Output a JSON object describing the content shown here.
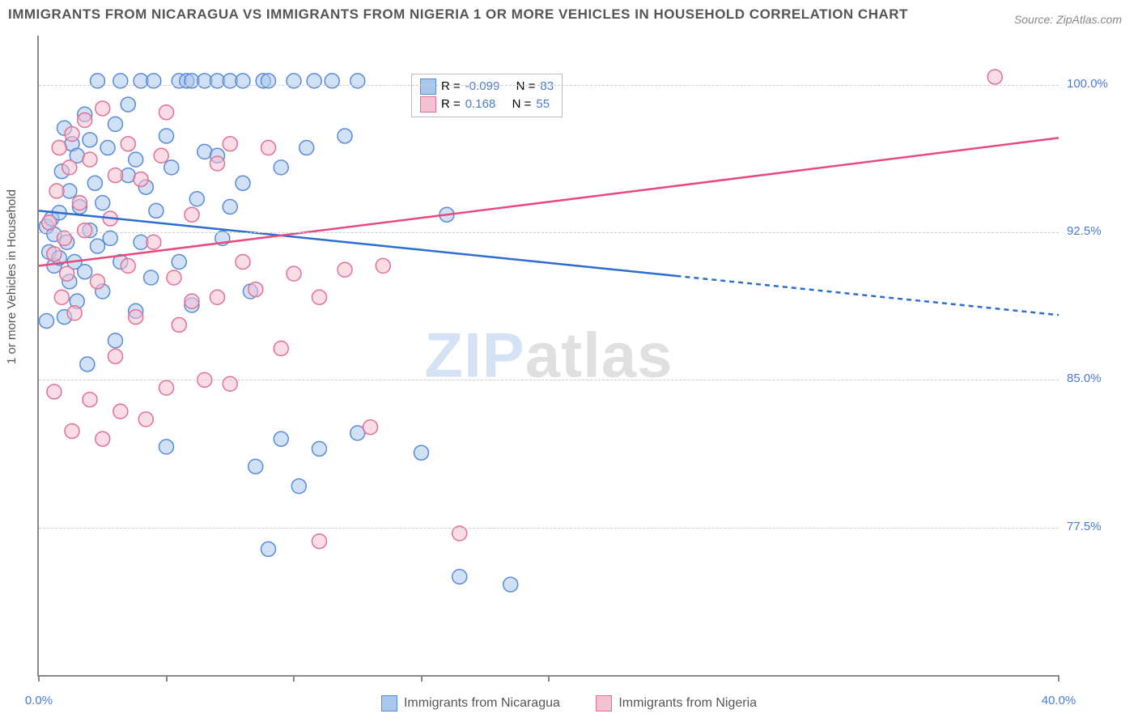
{
  "title": "IMMIGRANTS FROM NICARAGUA VS IMMIGRANTS FROM NIGERIA 1 OR MORE VEHICLES IN HOUSEHOLD CORRELATION CHART",
  "source": "Source: ZipAtlas.com",
  "y_axis_label": "1 or more Vehicles in Household",
  "watermark_a": "ZIP",
  "watermark_b": "atlas",
  "chart": {
    "type": "scatter",
    "xlim": [
      0,
      40
    ],
    "ylim": [
      70,
      102.5
    ],
    "x_ticks": [
      0,
      5,
      10,
      15,
      20,
      40
    ],
    "x_tick_labels": {
      "0": "0.0%",
      "40": "40.0%"
    },
    "y_ticks": [
      77.5,
      85.0,
      92.5,
      100.0
    ],
    "y_tick_labels": [
      "77.5%",
      "85.0%",
      "92.5%",
      "100.0%"
    ],
    "grid_color": "#cccccc",
    "background_color": "#ffffff",
    "marker_radius": 9,
    "marker_opacity": 0.55,
    "line_width": 2.5,
    "series": [
      {
        "name": "Immigrants from Nicaragua",
        "color_fill": "#a9c6ec",
        "color_stroke": "#5a8bd8",
        "line_color": "#2d6cd1",
        "r_value": "-0.099",
        "n_value": "83",
        "regression": {
          "x1": 0,
          "y1": 93.6,
          "x2": 40,
          "y2": 88.3,
          "solid_until_x": 25
        },
        "points": [
          [
            0.3,
            92.8
          ],
          [
            0.4,
            91.5
          ],
          [
            0.5,
            93.2
          ],
          [
            0.6,
            92.4
          ],
          [
            0.6,
            90.8
          ],
          [
            0.8,
            91.2
          ],
          [
            0.8,
            93.5
          ],
          [
            0.9,
            95.6
          ],
          [
            1.0,
            97.8
          ],
          [
            1.0,
            88.2
          ],
          [
            1.1,
            92.0
          ],
          [
            1.2,
            90.0
          ],
          [
            1.2,
            94.6
          ],
          [
            1.3,
            97.0
          ],
          [
            1.4,
            91.0
          ],
          [
            1.5,
            96.4
          ],
          [
            1.5,
            89.0
          ],
          [
            1.6,
            93.8
          ],
          [
            1.8,
            98.5
          ],
          [
            1.8,
            90.5
          ],
          [
            1.9,
            85.8
          ],
          [
            2.0,
            97.2
          ],
          [
            2.0,
            92.6
          ],
          [
            2.2,
            95.0
          ],
          [
            2.3,
            100.2
          ],
          [
            2.3,
            91.8
          ],
          [
            2.5,
            94.0
          ],
          [
            2.5,
            89.5
          ],
          [
            2.7,
            96.8
          ],
          [
            2.8,
            92.2
          ],
          [
            3.0,
            98.0
          ],
          [
            3.0,
            87.0
          ],
          [
            3.2,
            100.2
          ],
          [
            3.2,
            91.0
          ],
          [
            3.5,
            95.4
          ],
          [
            3.5,
            99.0
          ],
          [
            3.8,
            88.5
          ],
          [
            3.8,
            96.2
          ],
          [
            4.0,
            100.2
          ],
          [
            4.0,
            92.0
          ],
          [
            4.2,
            94.8
          ],
          [
            4.4,
            90.2
          ],
          [
            4.5,
            100.2
          ],
          [
            4.6,
            93.6
          ],
          [
            5.0,
            81.6
          ],
          [
            5.0,
            97.4
          ],
          [
            5.2,
            95.8
          ],
          [
            5.5,
            100.2
          ],
          [
            5.5,
            91.0
          ],
          [
            5.8,
            100.2
          ],
          [
            6.0,
            88.8
          ],
          [
            6.0,
            100.2
          ],
          [
            6.2,
            94.2
          ],
          [
            6.5,
            100.2
          ],
          [
            6.5,
            96.6
          ],
          [
            7.0,
            96.4
          ],
          [
            7.0,
            100.2
          ],
          [
            7.2,
            92.2
          ],
          [
            7.5,
            93.8
          ],
          [
            7.5,
            100.2
          ],
          [
            8.0,
            100.2
          ],
          [
            8.0,
            95.0
          ],
          [
            8.3,
            89.5
          ],
          [
            8.5,
            80.6
          ],
          [
            8.8,
            100.2
          ],
          [
            9.0,
            76.4
          ],
          [
            9.0,
            100.2
          ],
          [
            9.5,
            95.8
          ],
          [
            9.5,
            82.0
          ],
          [
            10.0,
            100.2
          ],
          [
            10.2,
            79.6
          ],
          [
            10.5,
            96.8
          ],
          [
            10.8,
            100.2
          ],
          [
            11.0,
            81.5
          ],
          [
            11.5,
            100.2
          ],
          [
            12.0,
            97.4
          ],
          [
            12.5,
            100.2
          ],
          [
            12.5,
            82.3
          ],
          [
            15.0,
            81.3
          ],
          [
            16.0,
            93.4
          ],
          [
            16.5,
            75.0
          ],
          [
            18.5,
            74.6
          ],
          [
            0.3,
            88.0
          ]
        ]
      },
      {
        "name": "Immigrants from Nigeria",
        "color_fill": "#f5c0cf",
        "color_stroke": "#e56f94",
        "line_color": "#e74a7a",
        "r_value": "0.168",
        "n_value": "55",
        "regression": {
          "x1": 0,
          "y1": 90.8,
          "x2": 40,
          "y2": 97.3,
          "solid_until_x": 40
        },
        "points": [
          [
            0.4,
            93.0
          ],
          [
            0.6,
            91.4
          ],
          [
            0.7,
            94.6
          ],
          [
            0.8,
            96.8
          ],
          [
            0.9,
            89.2
          ],
          [
            1.0,
            92.2
          ],
          [
            1.1,
            90.4
          ],
          [
            1.2,
            95.8
          ],
          [
            1.3,
            97.5
          ],
          [
            1.3,
            82.4
          ],
          [
            1.4,
            88.4
          ],
          [
            1.6,
            94.0
          ],
          [
            1.8,
            92.6
          ],
          [
            1.8,
            98.2
          ],
          [
            2.0,
            96.2
          ],
          [
            2.0,
            84.0
          ],
          [
            2.3,
            90.0
          ],
          [
            2.5,
            82.0
          ],
          [
            2.5,
            98.8
          ],
          [
            2.8,
            93.2
          ],
          [
            3.0,
            95.4
          ],
          [
            3.0,
            86.2
          ],
          [
            3.2,
            83.4
          ],
          [
            3.5,
            90.8
          ],
          [
            3.5,
            97.0
          ],
          [
            3.8,
            88.2
          ],
          [
            4.0,
            95.2
          ],
          [
            4.2,
            83.0
          ],
          [
            4.5,
            92.0
          ],
          [
            4.8,
            96.4
          ],
          [
            5.0,
            84.6
          ],
          [
            5.0,
            98.6
          ],
          [
            5.3,
            90.2
          ],
          [
            5.5,
            87.8
          ],
          [
            6.0,
            93.4
          ],
          [
            6.0,
            89.0
          ],
          [
            6.5,
            85.0
          ],
          [
            7.0,
            96.0
          ],
          [
            7.0,
            89.2
          ],
          [
            7.5,
            97.0
          ],
          [
            7.5,
            84.8
          ],
          [
            8.0,
            91.0
          ],
          [
            8.5,
            89.6
          ],
          [
            9.0,
            96.8
          ],
          [
            9.5,
            86.6
          ],
          [
            10.0,
            90.4
          ],
          [
            11.0,
            76.8
          ],
          [
            11.0,
            89.2
          ],
          [
            12.0,
            90.6
          ],
          [
            13.0,
            82.6
          ],
          [
            13.5,
            90.8
          ],
          [
            15.5,
            99.0
          ],
          [
            16.5,
            77.2
          ],
          [
            37.5,
            100.4
          ],
          [
            0.6,
            84.4
          ]
        ]
      }
    ]
  },
  "legend_top": {
    "r_label": "R =",
    "n_label": "N ="
  },
  "legend_bottom": {
    "items": [
      "Immigrants from Nicaragua",
      "Immigrants from Nigeria"
    ]
  }
}
